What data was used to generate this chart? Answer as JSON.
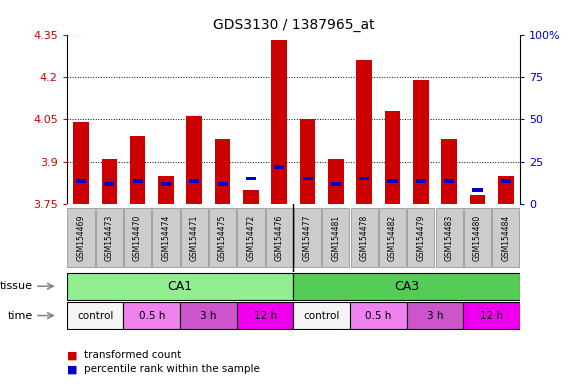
{
  "title": "GDS3130 / 1387965_at",
  "samples": [
    "GSM154469",
    "GSM154473",
    "GSM154470",
    "GSM154474",
    "GSM154471",
    "GSM154475",
    "GSM154472",
    "GSM154476",
    "GSM154477",
    "GSM154481",
    "GSM154478",
    "GSM154482",
    "GSM154479",
    "GSM154483",
    "GSM154480",
    "GSM154484"
  ],
  "red_values": [
    4.04,
    3.91,
    3.99,
    3.85,
    4.06,
    3.98,
    3.8,
    4.33,
    4.05,
    3.91,
    4.26,
    4.08,
    4.19,
    3.98,
    3.78,
    3.85
  ],
  "blue_values": [
    3.83,
    3.82,
    3.83,
    3.82,
    3.83,
    3.82,
    3.84,
    3.88,
    3.84,
    3.82,
    3.84,
    3.83,
    3.83,
    3.83,
    3.8,
    3.83
  ],
  "y_min": 3.75,
  "y_max": 4.35,
  "y_ticks_left": [
    3.75,
    3.9,
    4.05,
    4.2,
    4.35
  ],
  "y_ticks_right": [
    0,
    25,
    50,
    75,
    100
  ],
  "right_tick_labels": [
    "0",
    "25",
    "50",
    "75",
    "100%"
  ],
  "grid_lines": [
    3.9,
    4.05,
    4.2
  ],
  "tissue_groups": [
    {
      "label": "CA1",
      "start": 0,
      "end": 8,
      "color": "#90ee90"
    },
    {
      "label": "CA3",
      "start": 8,
      "end": 16,
      "color": "#55cc55"
    }
  ],
  "time_groups": [
    {
      "label": "control",
      "start": 0,
      "end": 2,
      "color": "#f5f5f5"
    },
    {
      "label": "0.5 h",
      "start": 2,
      "end": 4,
      "color": "#ee82ee"
    },
    {
      "label": "3 h",
      "start": 4,
      "end": 6,
      "color": "#cc55cc"
    },
    {
      "label": "12 h",
      "start": 6,
      "end": 8,
      "color": "#ee00ee"
    },
    {
      "label": "control",
      "start": 8,
      "end": 10,
      "color": "#f5f5f5"
    },
    {
      "label": "0.5 h",
      "start": 10,
      "end": 12,
      "color": "#ee82ee"
    },
    {
      "label": "3 h",
      "start": 12,
      "end": 14,
      "color": "#cc55cc"
    },
    {
      "label": "12 h",
      "start": 14,
      "end": 16,
      "color": "#ee00ee"
    }
  ],
  "bar_color_red": "#cc0000",
  "bar_color_blue": "#0000cc",
  "bar_width": 0.55,
  "bg_color": "#ffffff",
  "left_tick_color": "#cc0000",
  "right_tick_color": "#0000cc",
  "legend_red": "transformed count",
  "legend_blue": "percentile rank within the sample",
  "tissue_label": "tissue",
  "time_label": "time",
  "sample_box_color": "#cccccc",
  "sample_box_edge": "#888888"
}
